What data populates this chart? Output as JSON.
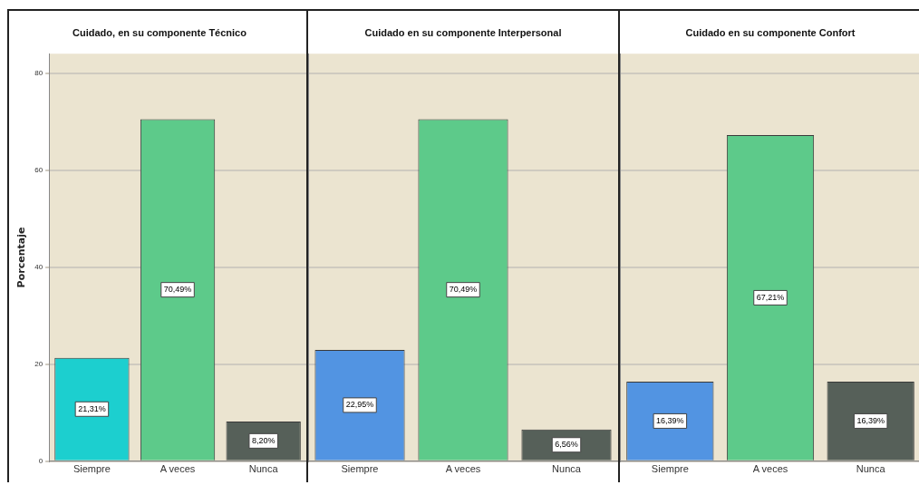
{
  "chart_data": [
    {
      "type": "bar",
      "title": "Cuidado, en su componente Técnico",
      "ylabel": "Porcentaje",
      "categories": [
        "Siempre",
        "A veces",
        "Nunca"
      ],
      "values": [
        21.31,
        70.49,
        8.2
      ],
      "colors": [
        "#1ccfcf",
        "#5dca8a",
        "#566059"
      ],
      "value_labels": [
        "21,31%",
        "70,49%",
        "8,20%"
      ],
      "ylim": [
        0,
        84
      ],
      "yticks": [
        0,
        20,
        40,
        60,
        80
      ],
      "grid": "y"
    },
    {
      "type": "bar",
      "title": "Cuidado en su componente Interpersonal",
      "categories": [
        "Siempre",
        "A veces",
        "Nunca"
      ],
      "values": [
        22.95,
        70.49,
        6.56
      ],
      "colors": [
        "#5294e2",
        "#5dca8a",
        "#566059"
      ],
      "value_labels": [
        "22,95%",
        "70,49%",
        "6,56%"
      ],
      "ylim": [
        0,
        84
      ],
      "yticks": [
        0,
        20,
        40,
        60,
        80
      ],
      "grid": "y",
      "tick_labels": "x"
    },
    {
      "type": "bar",
      "title": "Cuidado en su componente Confort",
      "categories": [
        "Siempre",
        "A veces",
        "Nunca"
      ],
      "values": [
        16.39,
        67.21,
        16.39
      ],
      "colors": [
        "#5294e2",
        "#5dca8a",
        "#566059"
      ],
      "value_labels": [
        "16,39%",
        "67,21%",
        "16,39%"
      ],
      "ylim": [
        0,
        84
      ],
      "yticks": [
        0,
        20,
        40,
        60,
        80
      ],
      "grid": "y",
      "tick_labels": "x"
    }
  ]
}
